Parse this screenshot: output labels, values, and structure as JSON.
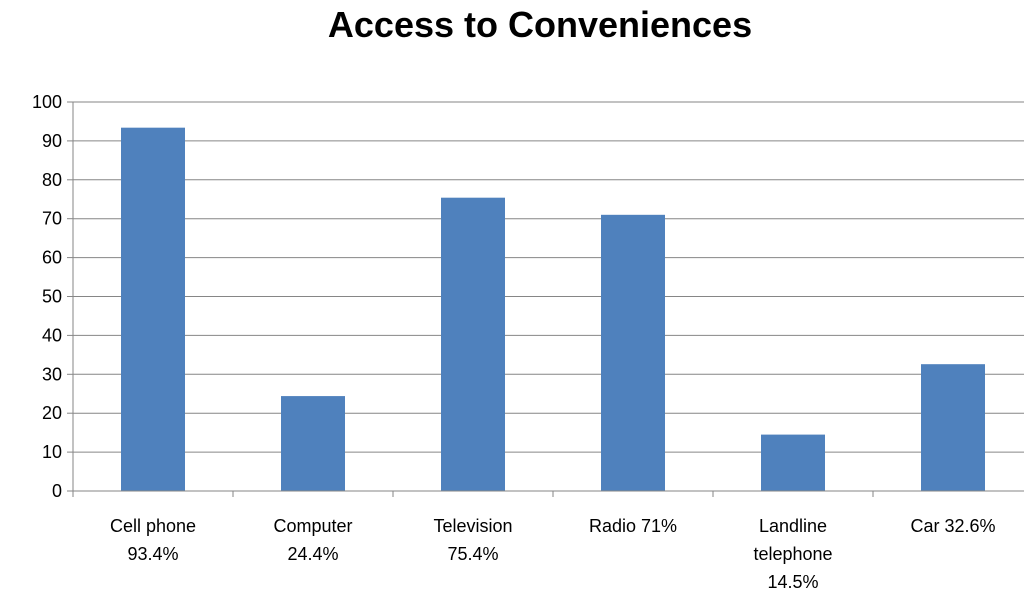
{
  "chart_data": {
    "type": "bar",
    "title": "Access to Conveniences",
    "categories": [
      [
        "Cell phone",
        "93.4%"
      ],
      [
        "Computer",
        "24.4%"
      ],
      [
        "Television",
        "75.4%"
      ],
      [
        "Radio 71%"
      ],
      [
        "Landline",
        "telephone",
        "14.5%"
      ],
      [
        "Car 32.6%"
      ]
    ],
    "values": [
      93.4,
      24.4,
      75.4,
      71,
      14.5,
      32.6
    ],
    "ylim": [
      0,
      100
    ],
    "yticks": [
      "0",
      "10",
      "20",
      "30",
      "40",
      "50",
      "60",
      "70",
      "80",
      "90",
      "100"
    ],
    "grid": true,
    "bar_color": "#4f81bd",
    "grid_color": "#868686"
  }
}
